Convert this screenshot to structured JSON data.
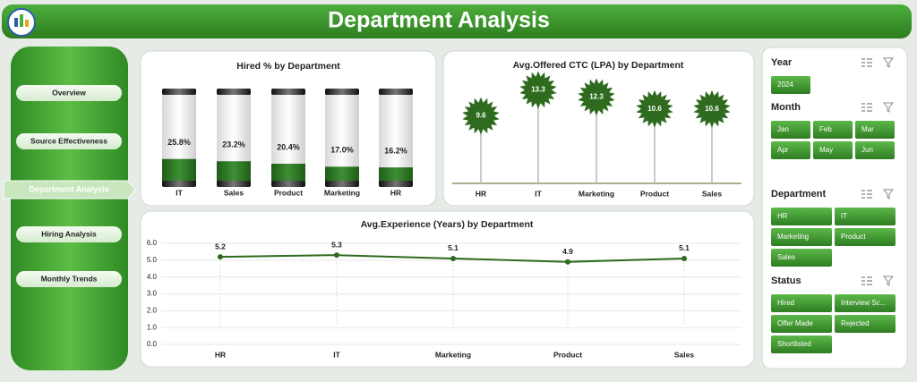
{
  "header": {
    "title": "Department Analysis"
  },
  "nav": {
    "items": [
      "Overview",
      "Source Effectiveness",
      "Department Analysis",
      "Hiring Analysis",
      "Monthly Trends"
    ],
    "active": 2
  },
  "chart_data": [
    {
      "type": "cylinder",
      "title": "Hired % by Department",
      "categories": [
        "IT",
        "Sales",
        "Product",
        "Marketing",
        "HR"
      ],
      "values": [
        25.8,
        23.2,
        20.4,
        17.0,
        16.2
      ],
      "value_labels": [
        "25.8%",
        "23.2%",
        "20.4%",
        "17.0%",
        "16.2%"
      ],
      "ylim": [
        0,
        100
      ],
      "color": "#2e7d32"
    },
    {
      "type": "lollipop",
      "title": "Avg.Offered CTC (LPA) by Department",
      "categories": [
        "HR",
        "IT",
        "Marketing",
        "Product",
        "Sales"
      ],
      "values": [
        9.6,
        13.3,
        12.3,
        10.6,
        10.6
      ],
      "ylim": [
        0,
        14
      ],
      "color": "#2e6b1f"
    },
    {
      "type": "line",
      "title": "Avg.Experience (Years) by Department",
      "categories": [
        "HR",
        "IT",
        "Marketing",
        "Product",
        "Sales"
      ],
      "values": [
        5.2,
        5.3,
        5.1,
        4.9,
        5.1
      ],
      "ylim": [
        0,
        6
      ],
      "yticks": [
        {
          "value": 6,
          "label": "6.0"
        },
        {
          "value": 5,
          "label": "5.0"
        },
        {
          "value": 4,
          "label": "4.0"
        },
        {
          "value": 3,
          "label": "3.0"
        },
        {
          "value": 2,
          "label": "2.0"
        },
        {
          "value": 1,
          "label": "1.0"
        },
        {
          "value": 0,
          "label": "0.0"
        }
      ],
      "color": "#2e6b1f"
    }
  ],
  "slicers": [
    {
      "title": "Year",
      "items": [
        "2024"
      ],
      "columns": 3
    },
    {
      "title": "Month",
      "items": [
        "Jan",
        "Feb",
        "Mar",
        "Apr",
        "May",
        "Jun"
      ],
      "columns": 3
    },
    {
      "title": "Department",
      "items": [
        "HR",
        "IT",
        "Marketing",
        "Product",
        "Sales"
      ],
      "columns": 2
    },
    {
      "title": "Status",
      "items": [
        "Hired",
        "Interview Sc...",
        "Offer Made",
        "Rejected",
        "Shortlisted"
      ],
      "columns": 2
    }
  ]
}
